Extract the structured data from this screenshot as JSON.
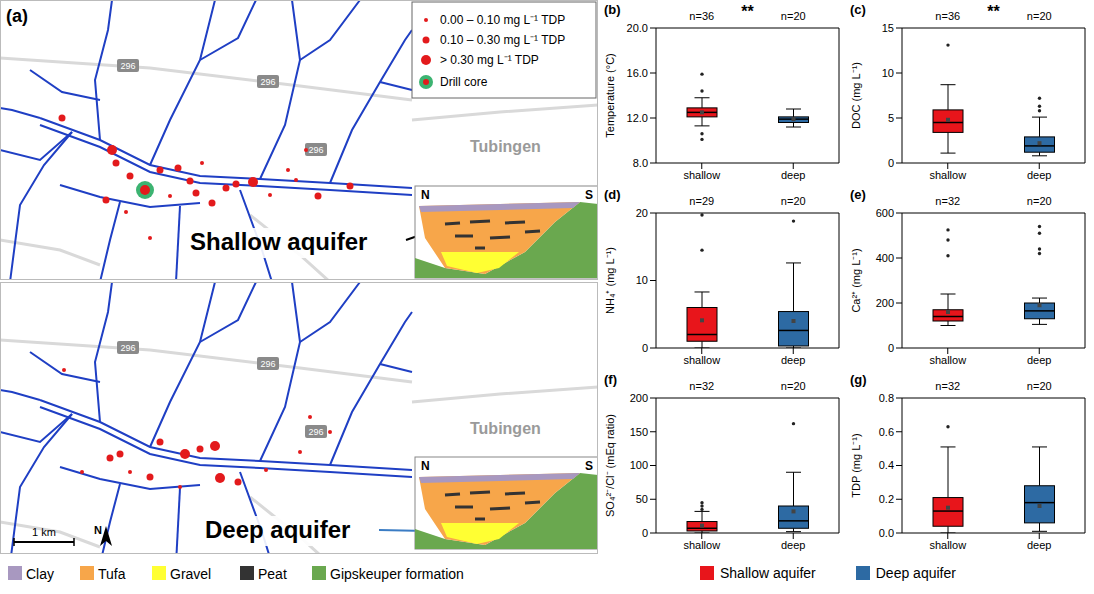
{
  "panel_a": {
    "letter": "(a)",
    "place_label": "Tubingen",
    "road_label": "296",
    "tdp_legend": [
      {
        "label": "0.00 – 0.10 mg L⁻¹ TDP",
        "color": "#e31a1c"
      },
      {
        "label": "0.10 – 0.30 mg L⁻¹ TDP",
        "color": "#e31a1c"
      },
      {
        "label": "> 0.30 mg L⁻¹ TDP",
        "color": "#e31a1c"
      }
    ],
    "drill_core": {
      "label": "Drill core",
      "color": "#3cb371"
    },
    "maps": [
      {
        "label": "Shallow aquifer"
      },
      {
        "label": "Deep aquifer"
      }
    ],
    "inset_labels": [
      "N",
      "S"
    ],
    "scale_bar": "1 km",
    "north": "N"
  },
  "unit_legend": [
    {
      "label": "Clay",
      "color": "#a898c0"
    },
    {
      "label": "Tufa",
      "color": "#f7a64a"
    },
    {
      "label": "Gravel",
      "color": "#ffff33"
    },
    {
      "label": "Peat",
      "color": "#333333"
    },
    {
      "label": "Gipskeuper formation",
      "color": "#6aa84f"
    }
  ],
  "legend": [
    {
      "name": "Shallow aquifer",
      "color": "#e8151b"
    },
    {
      "name": "Deep aquifer",
      "color": "#2d6aa3"
    }
  ],
  "chart_data": [
    {
      "type": "box",
      "letter": "(b)",
      "ylabel": "Temperature (°C)",
      "categories": [
        "shallow",
        "deep"
      ],
      "colors": [
        "#e8151b",
        "#2d6aa3"
      ],
      "ylim": [
        8,
        20
      ],
      "yticks": [
        {
          "value": 8,
          "label": "8.0"
        },
        {
          "value": 12,
          "label": "12.0"
        },
        {
          "value": 16,
          "label": "16.0"
        },
        {
          "value": 20,
          "label": "20.0"
        }
      ],
      "significance": "**",
      "n_labels": [
        "n=36",
        "n=20"
      ],
      "boxes": [
        {
          "whisker_low": 11.3,
          "q1": 12.1,
          "median": 12.5,
          "q3": 12.9,
          "whisker_high": 13.8,
          "mean": 12.5,
          "outliers": [
            10.1,
            10.6,
            14.4,
            15.9
          ]
        },
        {
          "whisker_low": 11.2,
          "q1": 11.6,
          "median": 11.9,
          "q3": 12.1,
          "whisker_high": 12.8,
          "mean": 11.9,
          "outliers": []
        }
      ]
    },
    {
      "type": "box",
      "letter": "(c)",
      "ylabel": "DOC (mg L⁻¹)",
      "categories": [
        "shallow",
        "deep"
      ],
      "colors": [
        "#e8151b",
        "#2d6aa3"
      ],
      "ylim": [
        0,
        15
      ],
      "yticks": [
        0,
        5,
        10,
        15
      ],
      "significance": "**",
      "n_labels": [
        "n=36",
        "n=20"
      ],
      "boxes": [
        {
          "whisker_low": 1.1,
          "q1": 3.4,
          "median": 4.5,
          "q3": 5.9,
          "whisker_high": 8.7,
          "mean": 4.8,
          "outliers": [
            13.1
          ]
        },
        {
          "whisker_low": 0.8,
          "q1": 1.2,
          "median": 1.9,
          "q3": 2.9,
          "whisker_high": 5.1,
          "mean": 2.2,
          "outliers": [
            5.8,
            6.3,
            7.2
          ]
        }
      ]
    },
    {
      "type": "box",
      "letter": "(d)",
      "ylabel": "NH₄⁺ (mg L⁻¹)",
      "categories": [
        "shallow",
        "deep"
      ],
      "colors": [
        "#e8151b",
        "#2d6aa3"
      ],
      "ylim": [
        0,
        20
      ],
      "yticks": [
        0,
        10,
        20
      ],
      "n_labels": [
        "n=29",
        "n=20"
      ],
      "boxes": [
        {
          "whisker_low": 0,
          "q1": 1.0,
          "median": 2.0,
          "q3": 6.0,
          "whisker_high": 8.3,
          "mean": 4.1,
          "outliers": [
            14.5,
            19.7
          ]
        },
        {
          "whisker_low": 0,
          "q1": 0.3,
          "median": 2.6,
          "q3": 5.4,
          "whisker_high": 12.6,
          "mean": 4.0,
          "outliers": [
            18.8
          ]
        }
      ]
    },
    {
      "type": "box",
      "letter": "(e)",
      "ylabel": "Ca²⁺ (mg L⁻¹)",
      "categories": [
        "shallow",
        "deep"
      ],
      "colors": [
        "#e8151b",
        "#2d6aa3"
      ],
      "ylim": [
        0,
        600
      ],
      "yticks": [
        0,
        200,
        400,
        600
      ],
      "n_labels": [
        "n=32",
        "n=20"
      ],
      "boxes": [
        {
          "whisker_low": 100,
          "q1": 120,
          "median": 140,
          "q3": 170,
          "whisker_high": 240,
          "mean": 160,
          "outliers": [
            410,
            480,
            525
          ]
        },
        {
          "whisker_low": 105,
          "q1": 130,
          "median": 165,
          "q3": 200,
          "whisker_high": 222,
          "mean": 190,
          "outliers": [
            420,
            440,
            510,
            540
          ]
        }
      ]
    },
    {
      "type": "box",
      "letter": "(f)",
      "ylabel": "SO₄²⁻/Cl⁻ (mEq ratio)",
      "categories": [
        "shallow",
        "deep"
      ],
      "colors": [
        "#e8151b",
        "#2d6aa3"
      ],
      "ylim": [
        0,
        200
      ],
      "yticks": [
        0,
        50,
        100,
        150,
        200
      ],
      "n_labels": [
        "n=32",
        "n=20"
      ],
      "boxes": [
        {
          "whisker_low": 0,
          "q1": 3,
          "median": 7,
          "q3": 17,
          "whisker_high": 32,
          "mean": 11,
          "outliers": [
            35,
            40,
            45
          ]
        },
        {
          "whisker_low": 2,
          "q1": 7,
          "median": 18,
          "q3": 40,
          "whisker_high": 90,
          "mean": 32,
          "outliers": [
            162
          ]
        }
      ]
    },
    {
      "type": "box",
      "letter": "(g)",
      "ylabel": "TDP (mg L⁻¹)",
      "categories": [
        "shallow",
        "deep"
      ],
      "colors": [
        "#e8151b",
        "#2d6aa3"
      ],
      "ylim": [
        0,
        0.8
      ],
      "yticks": [
        {
          "value": 0,
          "label": "0.0"
        },
        {
          "value": 0.2,
          "label": "0.2"
        },
        {
          "value": 0.4,
          "label": "0.4"
        },
        {
          "value": 0.6,
          "label": "0.6"
        },
        {
          "value": 0.8,
          "label": "0.8"
        }
      ],
      "n_labels": [
        "n=32",
        "n=20"
      ],
      "boxes": [
        {
          "whisker_low": 0,
          "q1": 0.04,
          "median": 0.13,
          "q3": 0.21,
          "whisker_high": 0.51,
          "mean": 0.15,
          "outliers": [
            0.63
          ]
        },
        {
          "whisker_low": 0.01,
          "q1": 0.06,
          "median": 0.18,
          "q3": 0.28,
          "whisker_high": 0.51,
          "mean": 0.16,
          "outliers": []
        }
      ]
    }
  ]
}
